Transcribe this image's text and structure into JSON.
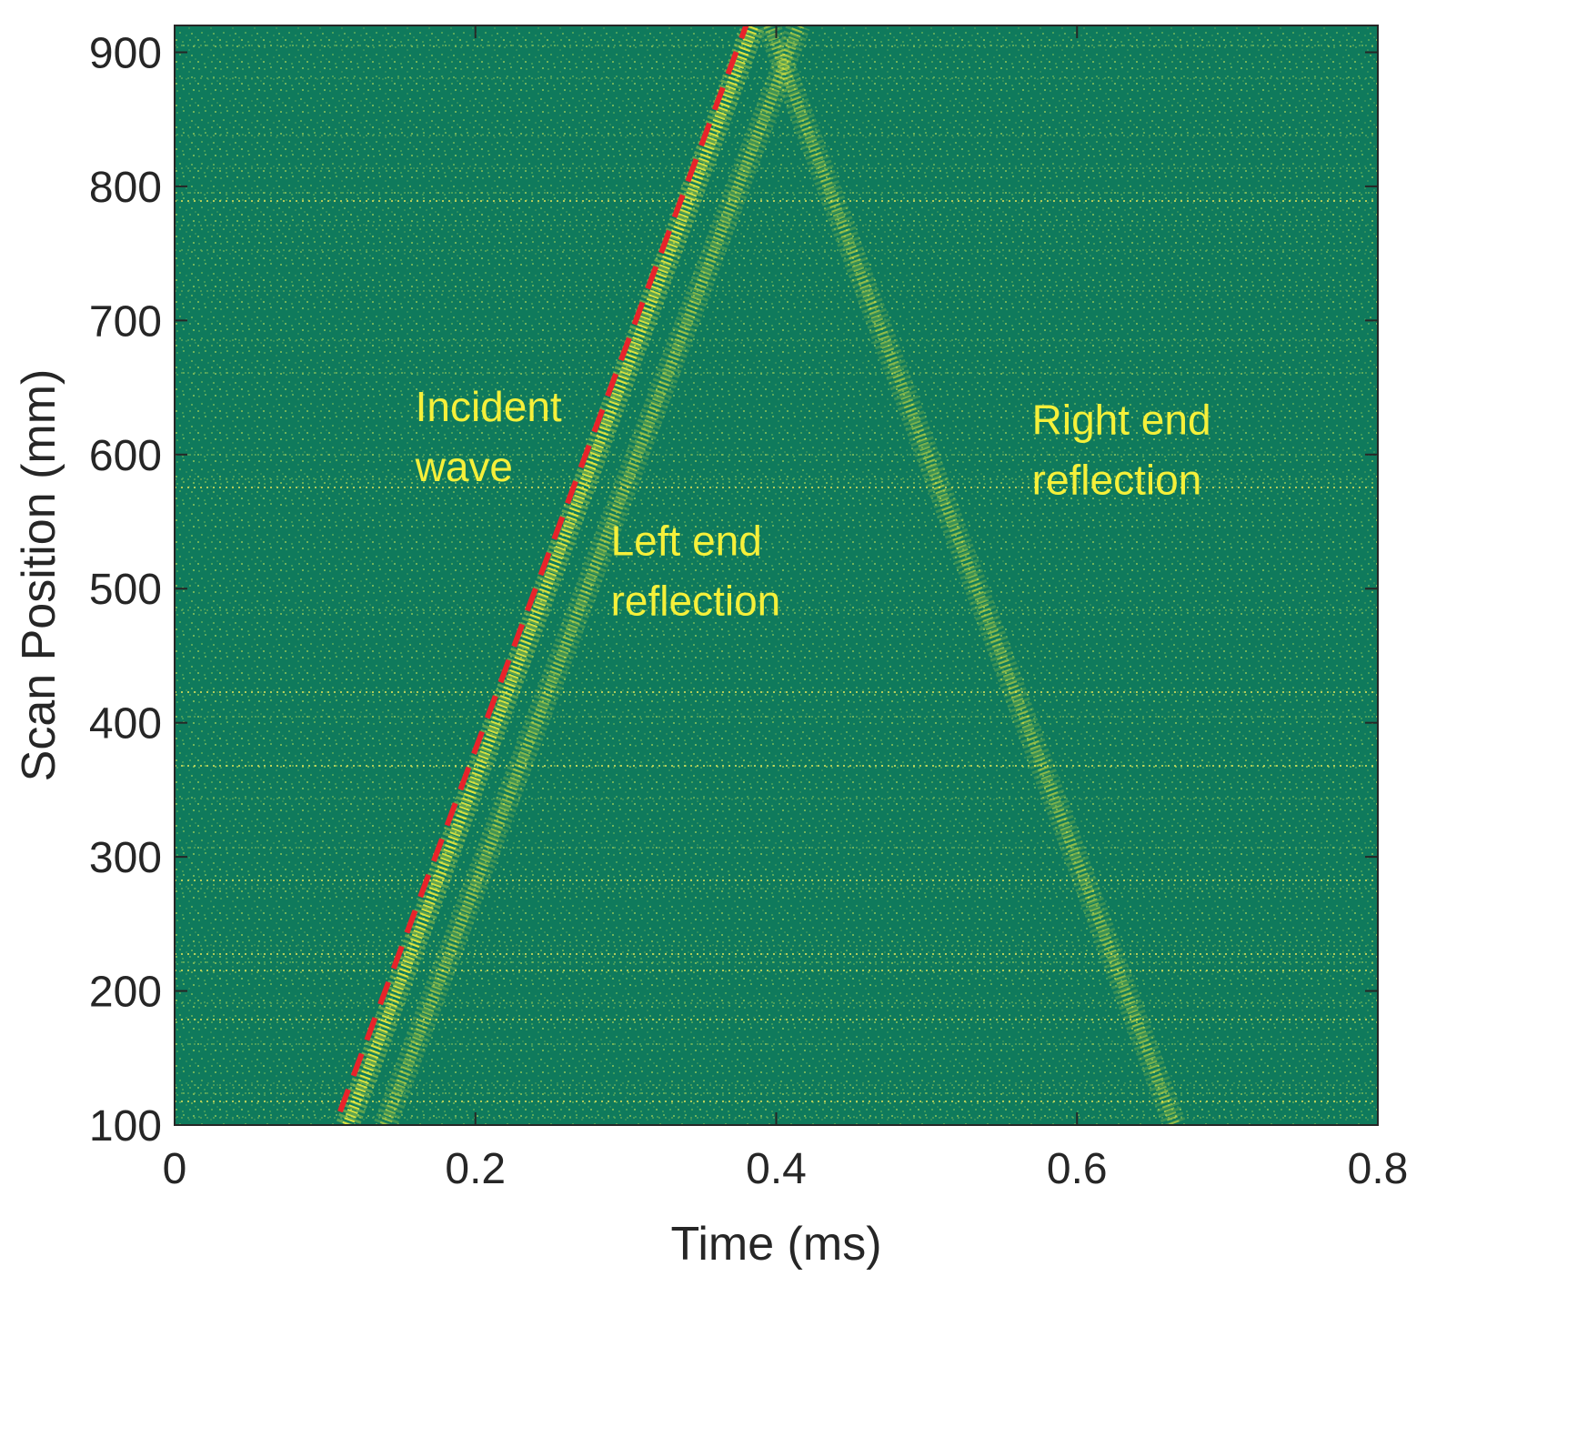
{
  "chart_data": {
    "type": "heatmap",
    "title": "",
    "xlabel": "Time (ms)",
    "ylabel": "Scan Position (mm)",
    "xlim": [
      0,
      0.8
    ],
    "ylim": [
      100,
      920
    ],
    "x_ticks": [
      0,
      0.2,
      0.4,
      0.6,
      0.8
    ],
    "x_tick_labels": [
      "0",
      "0.2",
      "0.4",
      "0.6",
      "0.8"
    ],
    "y_ticks": [
      100,
      200,
      300,
      400,
      500,
      600,
      700,
      800,
      900
    ],
    "y_tick_labels": [
      "100",
      "200",
      "300",
      "400",
      "500",
      "600",
      "700",
      "800",
      "900"
    ],
    "colormap": {
      "background": "#0f7a5c",
      "highlight": "#f5f03a"
    },
    "grid": false,
    "wave_bands": [
      {
        "start": [
          0.115,
          100
        ],
        "end": [
          0.385,
          920
        ],
        "intensity": 1.0
      },
      {
        "start": [
          0.14,
          100
        ],
        "end": [
          0.415,
          920
        ],
        "intensity": 0.6
      },
      {
        "start": [
          0.395,
          920
        ],
        "end": [
          0.665,
          100
        ],
        "intensity": 0.55
      }
    ],
    "fit_line": {
      "color": "#e8232a",
      "style": "dashed",
      "points": [
        [
          0.11,
          110
        ],
        [
          0.38,
          920
        ]
      ]
    },
    "annotations": [
      {
        "lines": [
          "Incident",
          "wave"
        ],
        "x": 0.16,
        "y": 625,
        "color": "#f5f03a"
      },
      {
        "lines": [
          "Left end",
          "reflection"
        ],
        "x": 0.29,
        "y": 525,
        "color": "#f5f03a"
      },
      {
        "lines": [
          "Right end",
          "reflection"
        ],
        "x": 0.57,
        "y": 615,
        "color": "#f5f03a"
      }
    ]
  }
}
